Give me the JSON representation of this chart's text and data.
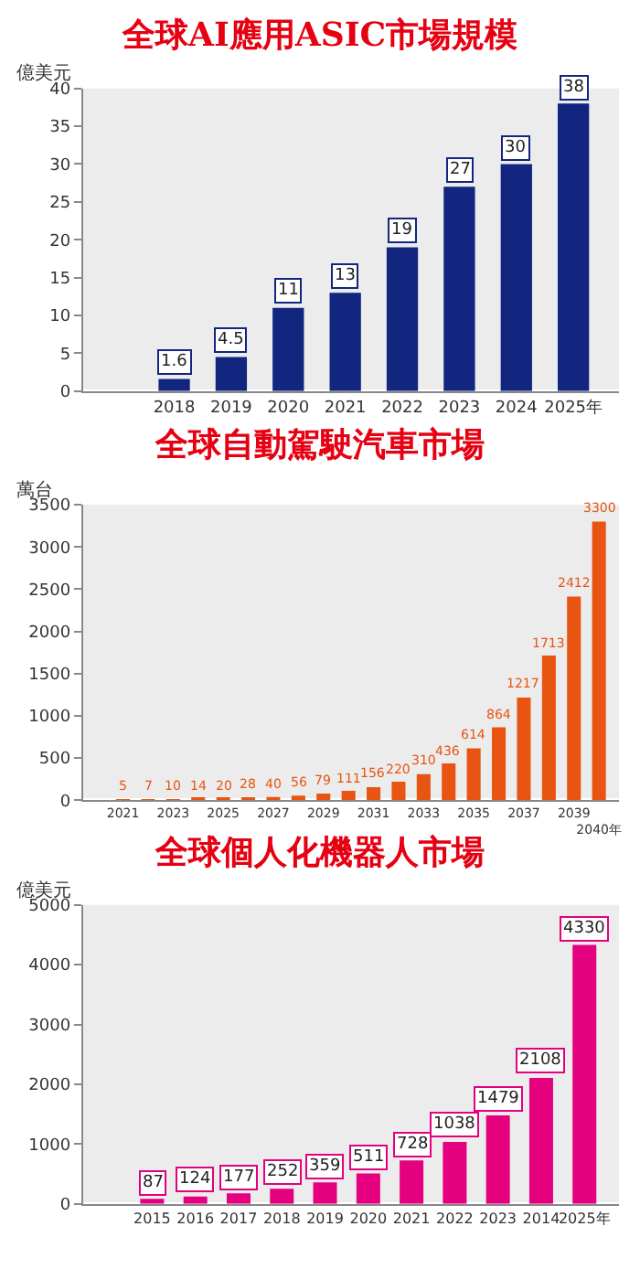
{
  "chart_data": [
    {
      "type": "bar",
      "title": "全球AI應用ASIC市場規模",
      "ylabel": "億美元",
      "categories": [
        "2018",
        "2019",
        "2020",
        "2021",
        "2022",
        "2023",
        "2024",
        "2025年"
      ],
      "values": [
        1.6,
        4.5,
        11,
        13,
        19,
        27,
        30,
        38
      ],
      "color": "#12267f",
      "ylim": [
        0,
        40
      ],
      "yticks": [
        0,
        5,
        10,
        15,
        20,
        25,
        30,
        35,
        40
      ],
      "data_labels": true,
      "grid": false
    },
    {
      "type": "bar",
      "title": "全球自動駕駛汽車市場",
      "ylabel": "萬台",
      "categories": [
        "2021",
        null,
        "2023",
        null,
        "2025",
        null,
        "2027",
        null,
        "2029",
        null,
        "2031",
        null,
        "2033",
        null,
        "2035",
        null,
        "2037",
        null,
        "2039",
        "2040年"
      ],
      "values": [
        5,
        7,
        10,
        14,
        20,
        28,
        40,
        56,
        79,
        111,
        156,
        220,
        310,
        436,
        614,
        864,
        1217,
        1713,
        2412,
        3300
      ],
      "color": "#e85412",
      "ylim": [
        0,
        3500
      ],
      "yticks": [
        0,
        500,
        1000,
        1500,
        2000,
        2500,
        3000,
        3500
      ],
      "data_labels": true,
      "grid": false
    },
    {
      "type": "bar",
      "title": "全球個人化機器人市場",
      "ylabel": "億美元",
      "categories": [
        "2015",
        "2016",
        "2017",
        "2018",
        "2019",
        "2020",
        "2021",
        "2022",
        "2023",
        "2014",
        "2025年"
      ],
      "values": [
        87,
        124,
        177,
        252,
        359,
        511,
        728,
        1038,
        1479,
        2108,
        4330
      ],
      "color": "#e4007f",
      "ylim": [
        0,
        5000
      ],
      "yticks": [
        0,
        1000,
        2000,
        3000,
        4000,
        5000
      ],
      "data_labels": true,
      "grid": false
    }
  ]
}
